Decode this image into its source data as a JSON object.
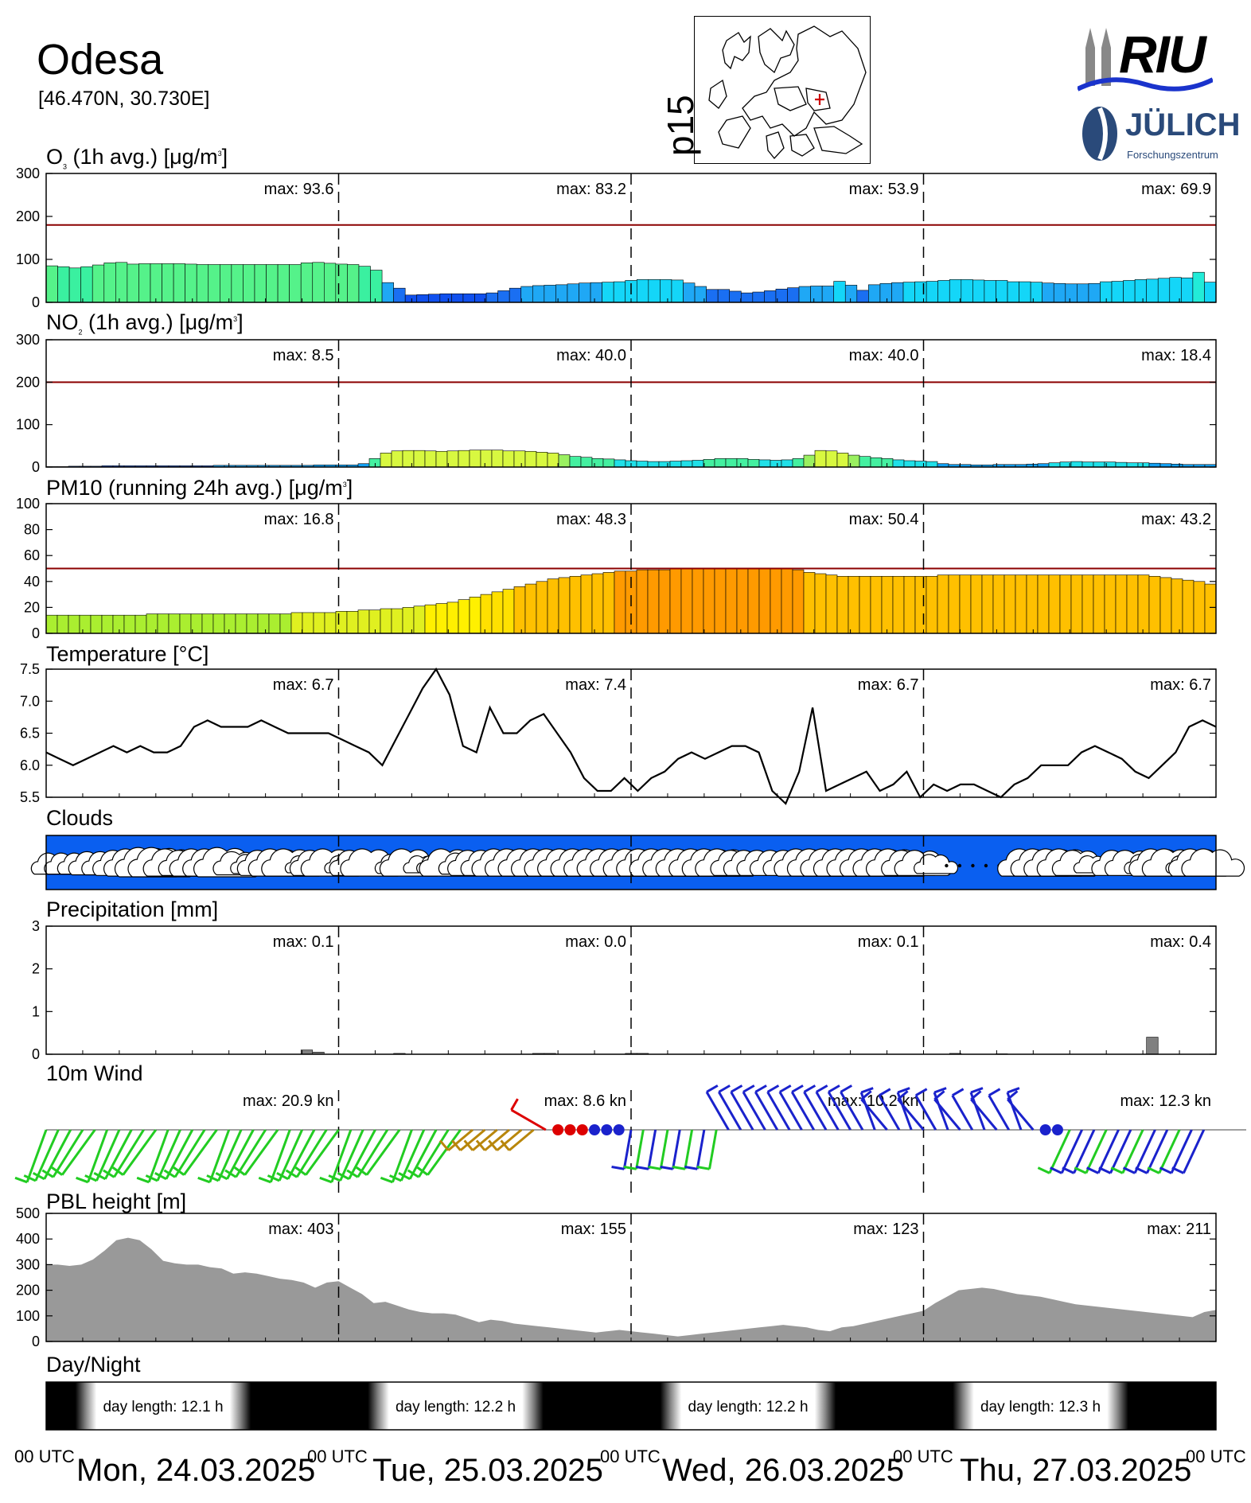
{
  "station": {
    "name": "Odesa",
    "coords": "[46.470N, 30.730E]",
    "panel_code": "p15"
  },
  "logos": {
    "riu": "RIU",
    "julich": "JÜLICH",
    "julich_sub": "Forschungszentrum"
  },
  "colors": {
    "threshold_line": "#8b0000",
    "sky_blue": "#0a5ff0",
    "precip_bar": "#808080",
    "pbl_fill": "#999999",
    "wind_green": "#22cc22",
    "wind_blue": "#1a22cc",
    "wind_red": "#dd0000",
    "wind_brown": "#b8860b"
  },
  "x_axis": {
    "days": [
      "Mon, 24.03.2025",
      "Tue, 25.03.2025",
      "Wed, 26.03.2025",
      "Thu, 27.03.2025"
    ],
    "utc_label": "00 UTC",
    "hours": 96
  },
  "chart_data": [
    {
      "id": "o3",
      "type": "bar",
      "title": "O₃ (1h avg.) [μg/m³]",
      "title_main": "O",
      "title_sub": "3",
      "title_rest": " (1h avg.) [μg/m",
      "title_sup": "3",
      "title_end": "]",
      "ylim": [
        0,
        300
      ],
      "yticks": [
        "300",
        "200",
        "100",
        "0"
      ],
      "ytick_values": [
        300,
        200,
        100,
        0
      ],
      "threshold": 180,
      "max_labels": [
        "max:  93.6",
        "max:  83.2",
        "max:  53.9",
        "max:  69.9"
      ],
      "values": [
        85,
        83,
        80,
        83,
        87,
        92,
        93,
        89,
        90,
        90,
        90,
        90,
        89,
        88,
        88,
        88,
        88,
        88,
        88,
        88,
        88,
        88,
        92,
        93,
        91,
        89,
        88,
        84,
        75,
        46,
        33,
        17,
        18,
        19,
        20,
        20,
        20,
        20,
        22,
        27,
        33,
        37,
        39,
        40,
        41,
        43,
        45,
        46,
        47,
        48,
        51,
        53,
        53,
        53,
        52,
        45,
        37,
        30,
        30,
        26,
        22,
        24,
        27,
        31,
        34,
        37,
        38,
        38,
        49,
        40,
        28,
        41,
        44,
        46,
        47,
        48,
        49,
        51,
        53,
        53,
        52,
        51,
        51,
        48,
        48,
        47,
        45,
        44,
        43,
        43,
        44,
        48,
        49,
        51,
        53,
        54,
        56,
        58,
        57,
        70,
        47
      ]
    },
    {
      "id": "no2",
      "type": "bar",
      "title": "NO₂ (1h avg.) [μg/m³]",
      "title_main": "NO",
      "title_sub": "2",
      "title_rest": " (1h avg.) [μg/m",
      "title_sup": "3",
      "title_end": "]",
      "ylim": [
        0,
        300
      ],
      "yticks": [
        "300",
        "200",
        "100",
        "0"
      ],
      "ytick_values": [
        300,
        200,
        100,
        0
      ],
      "threshold": 200,
      "max_labels": [
        "max:   8.5",
        "max:  40.0",
        "max:  40.0",
        "max:  18.4"
      ],
      "values": [
        1,
        1,
        2,
        2,
        2,
        3,
        3,
        3,
        3,
        3,
        3,
        3,
        3,
        3,
        3,
        4,
        4,
        4,
        4,
        4,
        4,
        4,
        4,
        4,
        5,
        5,
        5,
        5,
        8,
        20,
        33,
        38,
        39,
        39,
        38,
        37,
        38,
        39,
        40,
        40,
        40,
        38,
        38,
        37,
        35,
        33,
        29,
        25,
        23,
        20,
        19,
        17,
        15,
        14,
        13,
        13,
        14,
        15,
        16,
        18,
        20,
        20,
        20,
        18,
        17,
        16,
        17,
        20,
        28,
        39,
        38,
        33,
        28,
        25,
        22,
        20,
        17,
        15,
        14,
        13,
        8,
        6,
        6,
        5,
        5,
        6,
        6,
        6,
        7,
        8,
        10,
        12,
        13,
        12,
        12,
        12,
        11,
        10,
        10,
        9,
        8,
        7,
        6,
        6,
        6
      ]
    },
    {
      "id": "pm10",
      "type": "bar",
      "title": "PM10 (running 24h avg.) [μg/m³]",
      "title_main": "PM10 (running 24h avg.) [μg/m",
      "title_sup": "3",
      "title_end": "]",
      "ylim": [
        0,
        100
      ],
      "yticks": [
        "100",
        "80",
        "60",
        "40",
        "20",
        "0"
      ],
      "ytick_values": [
        100,
        80,
        60,
        40,
        20,
        0
      ],
      "threshold": 50,
      "max_labels": [
        "max:  16.8",
        "max:  48.3",
        "max:  50.4",
        "max:  43.2"
      ],
      "values": [
        14,
        14,
        14,
        14,
        14,
        14,
        14,
        14,
        14,
        15,
        15,
        15,
        15,
        15,
        15,
        15,
        15,
        15,
        15,
        15,
        15,
        15,
        16,
        16,
        16,
        16,
        17,
        17,
        18,
        18,
        19,
        19,
        20,
        21,
        22,
        23,
        24,
        26,
        28,
        30,
        32,
        34,
        36,
        38,
        40,
        42,
        43,
        44,
        45,
        46,
        47,
        48,
        48,
        49,
        49,
        49,
        50,
        50,
        50,
        50,
        50,
        50,
        50,
        50,
        50,
        50,
        50,
        49,
        47,
        46,
        45,
        44,
        44,
        44,
        44,
        44,
        44,
        44,
        44,
        44,
        45,
        45,
        45,
        45,
        45,
        45,
        45,
        45,
        45,
        45,
        45,
        45,
        45,
        45,
        45,
        45,
        45,
        45,
        45,
        44,
        43,
        42,
        41,
        40,
        38
      ]
    },
    {
      "id": "temperature",
      "type": "line",
      "title": "Temperature [°C]",
      "title_main": "Temperature [°C]",
      "ylim": [
        5.5,
        7.5
      ],
      "yticks": [
        "7.5",
        "7.0",
        "6.5",
        "6.0",
        "5.5"
      ],
      "ytick_values": [
        7.5,
        7.0,
        6.5,
        6.0,
        5.5
      ],
      "max_labels": [
        "max:   6.7",
        "max:   7.4",
        "max:   6.7",
        "max:   6.7"
      ],
      "values": [
        6.2,
        6.1,
        6.0,
        6.1,
        6.2,
        6.3,
        6.2,
        6.3,
        6.2,
        6.2,
        6.3,
        6.6,
        6.7,
        6.6,
        6.6,
        6.6,
        6.7,
        6.6,
        6.5,
        6.5,
        6.5,
        6.5,
        6.4,
        6.3,
        6.2,
        6.0,
        6.4,
        6.8,
        7.2,
        7.5,
        7.1,
        6.3,
        6.2,
        6.9,
        6.5,
        6.5,
        6.7,
        6.8,
        6.5,
        6.2,
        5.8,
        5.6,
        5.6,
        5.8,
        5.6,
        5.8,
        5.9,
        6.1,
        6.2,
        6.1,
        6.2,
        6.3,
        6.3,
        6.2,
        5.6,
        5.4,
        5.9,
        6.9,
        5.6,
        5.7,
        5.8,
        5.9,
        5.6,
        5.7,
        5.9,
        5.5,
        5.7,
        5.6,
        5.7,
        5.7,
        5.6,
        5.5,
        5.7,
        5.8,
        6.0,
        6.0,
        6.0,
        6.2,
        6.3,
        6.2,
        6.1,
        5.9,
        5.8,
        6.0,
        6.2,
        6.6,
        6.7,
        6.6
      ],
      "note_values_span_hours": 88
    },
    {
      "id": "clouds",
      "type": "table",
      "title": "Clouds",
      "title_main": "Clouds"
    },
    {
      "id": "precipitation",
      "type": "bar",
      "title": "Precipitation [mm]",
      "title_main": "Precipitation [mm]",
      "ylim": [
        0,
        3
      ],
      "yticks": [
        "3",
        "2",
        "1",
        "0"
      ],
      "ytick_values": [
        3,
        2,
        1,
        0
      ],
      "max_labels": [
        "max:   0.1",
        "max:   0.0",
        "max:   0.1",
        "max:   0.4"
      ],
      "values": [
        0,
        0,
        0,
        0,
        0,
        0,
        0,
        0,
        0,
        0,
        0,
        0,
        0,
        0,
        0,
        0,
        0,
        0,
        0,
        0,
        0,
        0,
        0.1,
        0.05,
        0,
        0,
        0,
        0,
        0,
        0,
        0.02,
        0,
        0,
        0,
        0,
        0,
        0,
        0,
        0,
        0,
        0,
        0,
        0.02,
        0.02,
        0,
        0,
        0,
        0,
        0,
        0,
        0.02,
        0.02,
        0,
        0,
        0,
        0,
        0,
        0,
        0,
        0,
        0,
        0,
        0,
        0,
        0,
        0,
        0,
        0,
        0,
        0,
        0,
        0,
        0,
        0,
        0,
        0,
        0,
        0,
        0.02,
        0,
        0,
        0,
        0.01,
        0,
        0,
        0,
        0,
        0,
        0,
        0,
        0,
        0,
        0,
        0,
        0,
        0.4,
        0,
        0,
        0,
        0,
        0
      ]
    },
    {
      "id": "wind",
      "type": "scatter",
      "title": "10m Wind",
      "title_main": "10m Wind",
      "max_labels": [
        "max:  20.9 kn",
        "max:   8.6 kn",
        "max:  10.2 kn",
        "max:  12.3 kn"
      ]
    },
    {
      "id": "pbl",
      "type": "area",
      "title": "PBL height [m]",
      "title_main": "PBL height [m]",
      "ylim": [
        0,
        500
      ],
      "yticks": [
        "500",
        "400",
        "300",
        "200",
        "100",
        "0"
      ],
      "ytick_values": [
        500,
        400,
        300,
        200,
        100,
        0
      ],
      "max_labels": [
        "max:  403",
        "max:  155",
        "max:  123",
        "max:  211"
      ],
      "values": [
        300,
        300,
        295,
        300,
        320,
        355,
        395,
        405,
        395,
        360,
        315,
        305,
        300,
        300,
        290,
        285,
        265,
        270,
        265,
        255,
        245,
        240,
        230,
        210,
        230,
        235,
        210,
        185,
        150,
        155,
        140,
        125,
        115,
        110,
        110,
        105,
        90,
        75,
        85,
        80,
        70,
        65,
        60,
        55,
        50,
        45,
        40,
        35,
        40,
        45,
        40,
        35,
        30,
        25,
        20,
        25,
        30,
        35,
        40,
        45,
        50,
        55,
        60,
        65,
        60,
        55,
        45,
        40,
        55,
        60,
        70,
        80,
        90,
        100,
        110,
        120,
        150,
        175,
        200,
        205,
        210,
        205,
        195,
        185,
        180,
        175,
        165,
        155,
        145,
        140,
        135,
        130,
        125,
        120,
        115,
        110,
        105,
        100,
        95,
        115,
        123
      ]
    },
    {
      "id": "daynight",
      "type": "heatmap",
      "title": "Day/Night",
      "title_main": "Day/Night",
      "labels": [
        "day length:  12.1 h",
        "day length:  12.2 h",
        "day length:  12.2 h",
        "day length:  12.3 h"
      ]
    }
  ]
}
